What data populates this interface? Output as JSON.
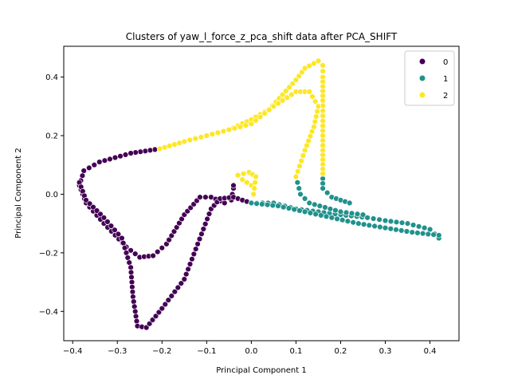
{
  "chart_data": {
    "type": "scatter",
    "title": "Clusters of yaw_l_force_z_pca_shift data after PCA_SHIFT",
    "xlabel": "Principal Component 1",
    "ylabel": "Principal Component 2",
    "xlim": [
      -0.42,
      0.465
    ],
    "ylim": [
      -0.5,
      0.505
    ],
    "xticks": [
      "−0.4",
      "−0.3",
      "−0.2",
      "−0.1",
      "0.0",
      "0.1",
      "0.2",
      "0.3",
      "0.4"
    ],
    "xtick_values": [
      -0.4,
      -0.3,
      -0.2,
      -0.1,
      0.0,
      0.1,
      0.2,
      0.3,
      0.4
    ],
    "yticks": [
      "−0.4",
      "−0.2",
      "0.0",
      "0.2",
      "0.4"
    ],
    "ytick_values": [
      -0.4,
      -0.2,
      0.0,
      0.2,
      0.4
    ],
    "grid": false,
    "legend_position": "upper right",
    "legend": [
      {
        "label": "0",
        "color": "#440154"
      },
      {
        "label": "1",
        "color": "#21918c"
      },
      {
        "label": "2",
        "color": "#fde725"
      }
    ],
    "series": [
      {
        "name": "0",
        "color": "#440154",
        "paths": [
          [
            [
              -0.205,
              0.155
            ],
            [
              -0.27,
              0.14
            ],
            [
              -0.34,
              0.11
            ],
            [
              -0.375,
              0.08
            ],
            [
              -0.385,
              0.03
            ],
            [
              -0.37,
              -0.03
            ],
            [
              -0.33,
              -0.1
            ],
            [
              -0.28,
              -0.18
            ],
            [
              -0.25,
              -0.215
            ],
            [
              -0.22,
              -0.21
            ],
            [
              -0.19,
              -0.17
            ],
            [
              -0.15,
              -0.07
            ],
            [
              -0.115,
              -0.01
            ],
            [
              -0.09,
              -0.01
            ],
            [
              -0.06,
              -0.03
            ],
            [
              -0.045,
              -0.02
            ],
            [
              -0.04,
              0.02
            ],
            [
              -0.04,
              0.03
            ]
          ],
          [
            [
              -0.385,
              0.04
            ],
            [
              -0.37,
              -0.02
            ],
            [
              -0.33,
              -0.08
            ],
            [
              -0.29,
              -0.15
            ],
            [
              -0.27,
              -0.25
            ],
            [
              -0.265,
              -0.35
            ],
            [
              -0.255,
              -0.45
            ],
            [
              -0.235,
              -0.455
            ],
            [
              -0.2,
              -0.39
            ],
            [
              -0.15,
              -0.29
            ],
            [
              -0.12,
              -0.17
            ],
            [
              -0.09,
              -0.05
            ],
            [
              -0.07,
              -0.015
            ],
            [
              -0.04,
              -0.01
            ],
            [
              0.0,
              -0.03
            ]
          ]
        ]
      },
      {
        "name": "1",
        "color": "#21918c",
        "paths": [
          [
            [
              0.0,
              -0.03
            ],
            [
              0.05,
              -0.03
            ],
            [
              0.1,
              -0.05
            ],
            [
              0.15,
              -0.06
            ],
            [
              0.2,
              -0.07
            ],
            [
              0.26,
              -0.08
            ],
            [
              0.3,
              -0.09
            ],
            [
              0.35,
              -0.1
            ],
            [
              0.4,
              -0.12
            ],
            [
              0.42,
              -0.15
            ]
          ],
          [
            [
              0.0,
              -0.03
            ],
            [
              0.06,
              -0.04
            ],
            [
              0.12,
              -0.06
            ],
            [
              0.18,
              -0.08
            ],
            [
              0.24,
              -0.1
            ],
            [
              0.3,
              -0.115
            ],
            [
              0.36,
              -0.13
            ],
            [
              0.42,
              -0.14
            ]
          ],
          [
            [
              0.1,
              0.06
            ],
            [
              0.11,
              0.0
            ],
            [
              0.13,
              -0.03
            ],
            [
              0.2,
              -0.06
            ],
            [
              0.25,
              -0.07
            ]
          ],
          [
            [
              0.16,
              0.07
            ],
            [
              0.16,
              0.02
            ],
            [
              0.18,
              -0.01
            ],
            [
              0.22,
              -0.03
            ]
          ]
        ]
      },
      {
        "name": "2",
        "color": "#fde725",
        "paths": [
          [
            [
              -0.205,
              0.155
            ],
            [
              -0.15,
              0.18
            ],
            [
              -0.1,
              0.2
            ],
            [
              -0.05,
              0.22
            ],
            [
              0.0,
              0.255
            ],
            [
              0.04,
              0.29
            ],
            [
              0.07,
              0.34
            ],
            [
              0.1,
              0.39
            ],
            [
              0.12,
              0.43
            ],
            [
              0.15,
              0.455
            ],
            [
              0.16,
              0.44
            ],
            [
              0.16,
              0.4
            ],
            [
              0.16,
              0.32
            ],
            [
              0.16,
              0.25
            ],
            [
              0.16,
              0.15
            ],
            [
              0.16,
              0.07
            ]
          ],
          [
            [
              -0.1,
              0.2
            ],
            [
              -0.05,
              0.22
            ],
            [
              0.0,
              0.24
            ],
            [
              0.05,
              0.3
            ],
            [
              0.1,
              0.35
            ],
            [
              0.13,
              0.35
            ],
            [
              0.15,
              0.3
            ],
            [
              0.14,
              0.23
            ],
            [
              0.12,
              0.15
            ],
            [
              0.1,
              0.06
            ]
          ],
          [
            [
              0.0,
              0.03
            ],
            [
              -0.02,
              0.05
            ],
            [
              -0.03,
              0.065
            ],
            [
              -0.005,
              0.075
            ],
            [
              0.01,
              0.06
            ],
            [
              0.005,
              0.0
            ]
          ]
        ]
      }
    ]
  }
}
